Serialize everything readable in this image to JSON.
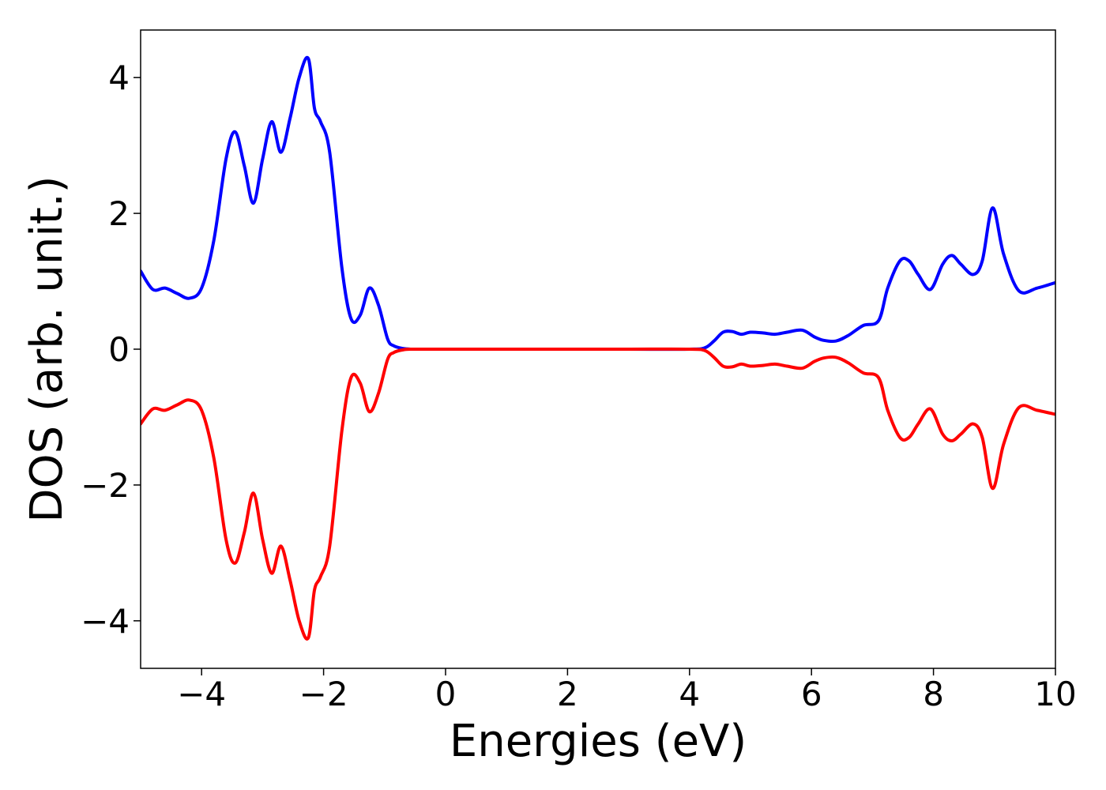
{
  "chart_data": {
    "type": "line",
    "title": "",
    "xlabel": "Energies (eV)",
    "ylabel": "DOS (arb. unit.)",
    "xlim": [
      -5,
      10
    ],
    "ylim": [
      -4.7,
      4.7
    ],
    "xticks": [
      -4,
      -2,
      0,
      2,
      4,
      6,
      8,
      10
    ],
    "yticks": [
      -4,
      -2,
      0,
      2,
      4
    ],
    "xtick_labels": [
      "−4",
      "−2",
      "0",
      "2",
      "4",
      "6",
      "8",
      "10"
    ],
    "ytick_labels": [
      "−4",
      "−2",
      "0",
      "2",
      "4"
    ],
    "grid": false,
    "legend": "none",
    "series": [
      {
        "color": "#0000ff",
        "x": [
          -5.0,
          -4.8,
          -4.6,
          -4.4,
          -4.2,
          -4.0,
          -3.8,
          -3.6,
          -3.45,
          -3.3,
          -3.15,
          -3.0,
          -2.85,
          -2.7,
          -2.55,
          -2.4,
          -2.25,
          -2.15,
          -2.05,
          -1.9,
          -1.7,
          -1.55,
          -1.4,
          -1.25,
          -1.1,
          -0.95,
          -0.85,
          -0.7,
          -0.55,
          -0.4,
          0.0,
          1.0,
          2.0,
          3.0,
          4.0,
          4.25,
          4.4,
          4.55,
          4.7,
          4.85,
          5.0,
          5.2,
          5.4,
          5.6,
          5.85,
          6.05,
          6.2,
          6.4,
          6.6,
          6.85,
          7.1,
          7.25,
          7.45,
          7.6,
          7.75,
          7.95,
          8.15,
          8.3,
          8.45,
          8.65,
          8.8,
          8.97,
          9.15,
          9.4,
          9.7,
          10.0
        ],
        "y": [
          1.15,
          0.88,
          0.9,
          0.82,
          0.75,
          0.9,
          1.6,
          2.8,
          3.2,
          2.7,
          2.15,
          2.8,
          3.35,
          2.9,
          3.4,
          4.0,
          4.28,
          3.55,
          3.35,
          2.9,
          1.2,
          0.45,
          0.5,
          0.9,
          0.65,
          0.15,
          0.05,
          0.01,
          0.0,
          0.0,
          0.0,
          0.0,
          0.0,
          0.0,
          0.0,
          0.02,
          0.12,
          0.25,
          0.26,
          0.22,
          0.25,
          0.24,
          0.22,
          0.25,
          0.28,
          0.18,
          0.13,
          0.12,
          0.2,
          0.35,
          0.42,
          0.9,
          1.3,
          1.3,
          1.1,
          0.88,
          1.25,
          1.38,
          1.25,
          1.1,
          1.3,
          2.08,
          1.4,
          0.86,
          0.9,
          0.98
        ]
      },
      {
        "color": "#ff0000",
        "x": [
          -5.0,
          -4.8,
          -4.6,
          -4.4,
          -4.2,
          -4.0,
          -3.8,
          -3.6,
          -3.45,
          -3.3,
          -3.15,
          -3.0,
          -2.85,
          -2.7,
          -2.55,
          -2.4,
          -2.25,
          -2.15,
          -2.05,
          -1.9,
          -1.7,
          -1.55,
          -1.4,
          -1.25,
          -1.1,
          -0.95,
          -0.85,
          -0.7,
          -0.55,
          -0.4,
          0.0,
          1.0,
          2.0,
          3.0,
          4.0,
          4.25,
          4.4,
          4.55,
          4.7,
          4.85,
          5.0,
          5.2,
          5.4,
          5.6,
          5.85,
          6.05,
          6.2,
          6.4,
          6.6,
          6.85,
          7.1,
          7.25,
          7.45,
          7.6,
          7.75,
          7.95,
          8.15,
          8.3,
          8.45,
          8.65,
          8.8,
          8.97,
          9.15,
          9.4,
          9.7,
          10.0
        ],
        "y": [
          -1.1,
          -0.88,
          -0.9,
          -0.82,
          -0.75,
          -0.9,
          -1.6,
          -2.8,
          -3.15,
          -2.7,
          -2.12,
          -2.8,
          -3.3,
          -2.9,
          -3.4,
          -4.0,
          -4.25,
          -3.55,
          -3.35,
          -2.9,
          -1.2,
          -0.42,
          -0.5,
          -0.92,
          -0.65,
          -0.15,
          -0.05,
          -0.01,
          0.0,
          0.0,
          0.0,
          0.0,
          0.0,
          0.0,
          0.0,
          -0.02,
          -0.12,
          -0.25,
          -0.26,
          -0.22,
          -0.25,
          -0.24,
          -0.22,
          -0.25,
          -0.28,
          -0.18,
          -0.13,
          -0.12,
          -0.2,
          -0.35,
          -0.42,
          -0.9,
          -1.3,
          -1.3,
          -1.1,
          -0.88,
          -1.25,
          -1.35,
          -1.25,
          -1.1,
          -1.3,
          -2.05,
          -1.4,
          -0.86,
          -0.9,
          -0.96
        ]
      }
    ]
  }
}
